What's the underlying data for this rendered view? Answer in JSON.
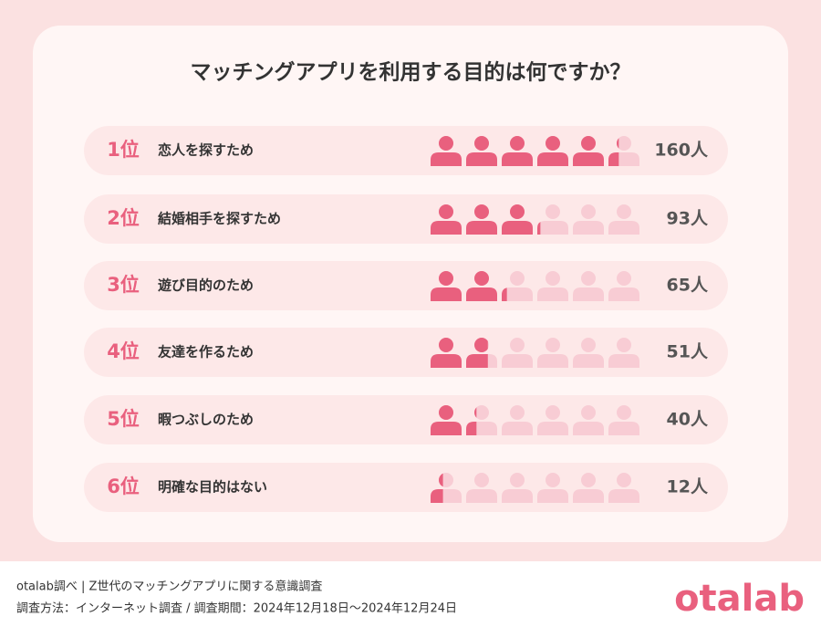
{
  "chart_data": {
    "type": "pictogram",
    "title": "マッチングアプリを利用する目的は何ですか？",
    "ranks": [
      "1位",
      "2位",
      "3位",
      "4位",
      "5位",
      "6位"
    ],
    "categories": [
      "恋人を探すため",
      "結婚相手を探すため",
      "遊び目的のため",
      "友達を作るため",
      "暇つぶしのため",
      "明確な目的はない"
    ],
    "values": [
      160,
      93,
      65,
      51,
      40,
      12
    ],
    "value_labels": [
      "160人",
      "93人",
      "65人",
      "51人",
      "40人",
      "12人"
    ],
    "xlim": [
      0,
      180
    ],
    "color": "#e9607e",
    "background_color": "#f8ccd4"
  },
  "footer": {
    "source": "otalab調べ | Z世代のマッチングアプリに関する意識調査",
    "method": "調査方法：インターネット調査 / 調査期間：2024年12月18日〜2024年12月24日",
    "logo": "otalab"
  }
}
